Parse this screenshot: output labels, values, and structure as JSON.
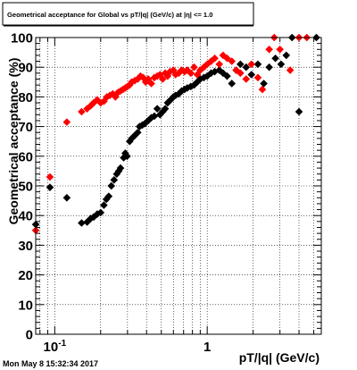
{
  "title": "Geometrical acceptance for Global vs pT/|q| (GeV/c) at |η| <= 1.0",
  "timestamp": "Mon May  8 15:32:34 2017",
  "chart_data": {
    "type": "scatter",
    "title": "Geometrical acceptance for Global vs pT/|q| (GeV/c) at |η| <= 1.0",
    "xlabel": "pT/|q| (GeV/c)",
    "ylabel": "Geometrical acceptance (%)",
    "x_scale": "log",
    "xlim": [
      0.075,
      5.6
    ],
    "ylim": [
      0,
      100
    ],
    "x_tick_labels": [
      {
        "value": 0.1,
        "base": "10",
        "exp": "-1"
      },
      {
        "value": 1,
        "base": "1",
        "exp": ""
      }
    ],
    "y_ticks": [
      0,
      10,
      20,
      30,
      40,
      50,
      60,
      70,
      80,
      90,
      100
    ],
    "grid": true,
    "series": [
      {
        "color": "#000000",
        "marker": "diamond",
        "points": [
          {
            "x": 0.075,
            "y": 37
          },
          {
            "x": 0.093,
            "y": 49.5
          },
          {
            "x": 0.12,
            "y": 46
          },
          {
            "x": 0.15,
            "y": 37.5
          },
          {
            "x": 0.163,
            "y": 37.8
          },
          {
            "x": 0.172,
            "y": 39
          },
          {
            "x": 0.18,
            "y": 39.5
          },
          {
            "x": 0.19,
            "y": 40.5
          },
          {
            "x": 0.2,
            "y": 41
          },
          {
            "x": 0.21,
            "y": 43.5
          },
          {
            "x": 0.218,
            "y": 45.5
          },
          {
            "x": 0.226,
            "y": 46.5
          },
          {
            "x": 0.235,
            "y": 50
          },
          {
            "x": 0.245,
            "y": 52
          },
          {
            "x": 0.255,
            "y": 54
          },
          {
            "x": 0.263,
            "y": 55
          },
          {
            "x": 0.27,
            "y": 56
          },
          {
            "x": 0.283,
            "y": 59.5
          },
          {
            "x": 0.29,
            "y": 61
          },
          {
            "x": 0.298,
            "y": 60
          },
          {
            "x": 0.31,
            "y": 65
          },
          {
            "x": 0.32,
            "y": 66
          },
          {
            "x": 0.335,
            "y": 67
          },
          {
            "x": 0.35,
            "y": 68
          },
          {
            "x": 0.36,
            "y": 70
          },
          {
            "x": 0.375,
            "y": 70.5
          },
          {
            "x": 0.39,
            "y": 71
          },
          {
            "x": 0.41,
            "y": 72
          },
          {
            "x": 0.43,
            "y": 73
          },
          {
            "x": 0.45,
            "y": 73.5
          },
          {
            "x": 0.47,
            "y": 76
          },
          {
            "x": 0.49,
            "y": 74
          },
          {
            "x": 0.51,
            "y": 75
          },
          {
            "x": 0.53,
            "y": 76
          },
          {
            "x": 0.55,
            "y": 78
          },
          {
            "x": 0.575,
            "y": 79
          },
          {
            "x": 0.6,
            "y": 80
          },
          {
            "x": 0.62,
            "y": 80.5
          },
          {
            "x": 0.65,
            "y": 81
          },
          {
            "x": 0.68,
            "y": 82
          },
          {
            "x": 0.71,
            "y": 82.5
          },
          {
            "x": 0.74,
            "y": 83
          },
          {
            "x": 0.78,
            "y": 83.5
          },
          {
            "x": 0.82,
            "y": 84
          },
          {
            "x": 0.86,
            "y": 85
          },
          {
            "x": 0.9,
            "y": 86
          },
          {
            "x": 0.95,
            "y": 86.5
          },
          {
            "x": 1.0,
            "y": 87
          },
          {
            "x": 1.06,
            "y": 88
          },
          {
            "x": 1.12,
            "y": 88.5
          },
          {
            "x": 1.2,
            "y": 89
          },
          {
            "x": 1.27,
            "y": 88
          },
          {
            "x": 1.35,
            "y": 87
          },
          {
            "x": 1.45,
            "y": 84.5
          },
          {
            "x": 1.55,
            "y": 89
          },
          {
            "x": 1.65,
            "y": 91
          },
          {
            "x": 1.8,
            "y": 90
          },
          {
            "x": 1.95,
            "y": 87.5
          },
          {
            "x": 2.15,
            "y": 91
          },
          {
            "x": 2.35,
            "y": 84.5
          },
          {
            "x": 2.55,
            "y": 90
          },
          {
            "x": 2.8,
            "y": 93
          },
          {
            "x": 3.05,
            "y": 91
          },
          {
            "x": 3.3,
            "y": 94
          },
          {
            "x": 3.6,
            "y": 100
          },
          {
            "x": 4.0,
            "y": 75
          },
          {
            "x": 5.2,
            "y": 100
          }
        ]
      },
      {
        "color": "#ff0000",
        "marker": "diamond",
        "points": [
          {
            "x": 0.075,
            "y": 35
          },
          {
            "x": 0.093,
            "y": 53
          },
          {
            "x": 0.12,
            "y": 71.5
          },
          {
            "x": 0.15,
            "y": 75
          },
          {
            "x": 0.163,
            "y": 76
          },
          {
            "x": 0.172,
            "y": 77
          },
          {
            "x": 0.18,
            "y": 78
          },
          {
            "x": 0.19,
            "y": 79
          },
          {
            "x": 0.2,
            "y": 78
          },
          {
            "x": 0.21,
            "y": 78.5
          },
          {
            "x": 0.22,
            "y": 80
          },
          {
            "x": 0.23,
            "y": 80.5
          },
          {
            "x": 0.24,
            "y": 81
          },
          {
            "x": 0.25,
            "y": 80
          },
          {
            "x": 0.26,
            "y": 81.5
          },
          {
            "x": 0.27,
            "y": 82
          },
          {
            "x": 0.28,
            "y": 82.5
          },
          {
            "x": 0.29,
            "y": 83
          },
          {
            "x": 0.3,
            "y": 83.5
          },
          {
            "x": 0.31,
            "y": 84
          },
          {
            "x": 0.32,
            "y": 85
          },
          {
            "x": 0.335,
            "y": 85.5
          },
          {
            "x": 0.35,
            "y": 86
          },
          {
            "x": 0.365,
            "y": 87
          },
          {
            "x": 0.38,
            "y": 86.5
          },
          {
            "x": 0.395,
            "y": 85
          },
          {
            "x": 0.41,
            "y": 86
          },
          {
            "x": 0.43,
            "y": 84.5
          },
          {
            "x": 0.45,
            "y": 86.5
          },
          {
            "x": 0.47,
            "y": 87
          },
          {
            "x": 0.49,
            "y": 87.5
          },
          {
            "x": 0.51,
            "y": 86
          },
          {
            "x": 0.53,
            "y": 88
          },
          {
            "x": 0.55,
            "y": 87
          },
          {
            "x": 0.57,
            "y": 88.5
          },
          {
            "x": 0.6,
            "y": 89
          },
          {
            "x": 0.62,
            "y": 87.5
          },
          {
            "x": 0.65,
            "y": 88
          },
          {
            "x": 0.68,
            "y": 89
          },
          {
            "x": 0.71,
            "y": 88.5
          },
          {
            "x": 0.74,
            "y": 89
          },
          {
            "x": 0.78,
            "y": 88
          },
          {
            "x": 0.82,
            "y": 90
          },
          {
            "x": 0.86,
            "y": 87.5
          },
          {
            "x": 0.9,
            "y": 89
          },
          {
            "x": 0.95,
            "y": 90
          },
          {
            "x": 1.0,
            "y": 91
          },
          {
            "x": 1.06,
            "y": 92
          },
          {
            "x": 1.12,
            "y": 93
          },
          {
            "x": 1.2,
            "y": 91
          },
          {
            "x": 1.27,
            "y": 94
          },
          {
            "x": 1.35,
            "y": 93
          },
          {
            "x": 1.45,
            "y": 92
          },
          {
            "x": 1.55,
            "y": 89
          },
          {
            "x": 1.65,
            "y": 88
          },
          {
            "x": 1.8,
            "y": 86
          },
          {
            "x": 1.95,
            "y": 91
          },
          {
            "x": 2.15,
            "y": 86.5
          },
          {
            "x": 2.3,
            "y": 82.5
          },
          {
            "x": 2.55,
            "y": 96
          },
          {
            "x": 2.75,
            "y": 100
          },
          {
            "x": 3.0,
            "y": 96
          },
          {
            "x": 3.5,
            "y": 89
          },
          {
            "x": 4.0,
            "y": 100
          },
          {
            "x": 4.5,
            "y": 100
          }
        ]
      }
    ]
  }
}
